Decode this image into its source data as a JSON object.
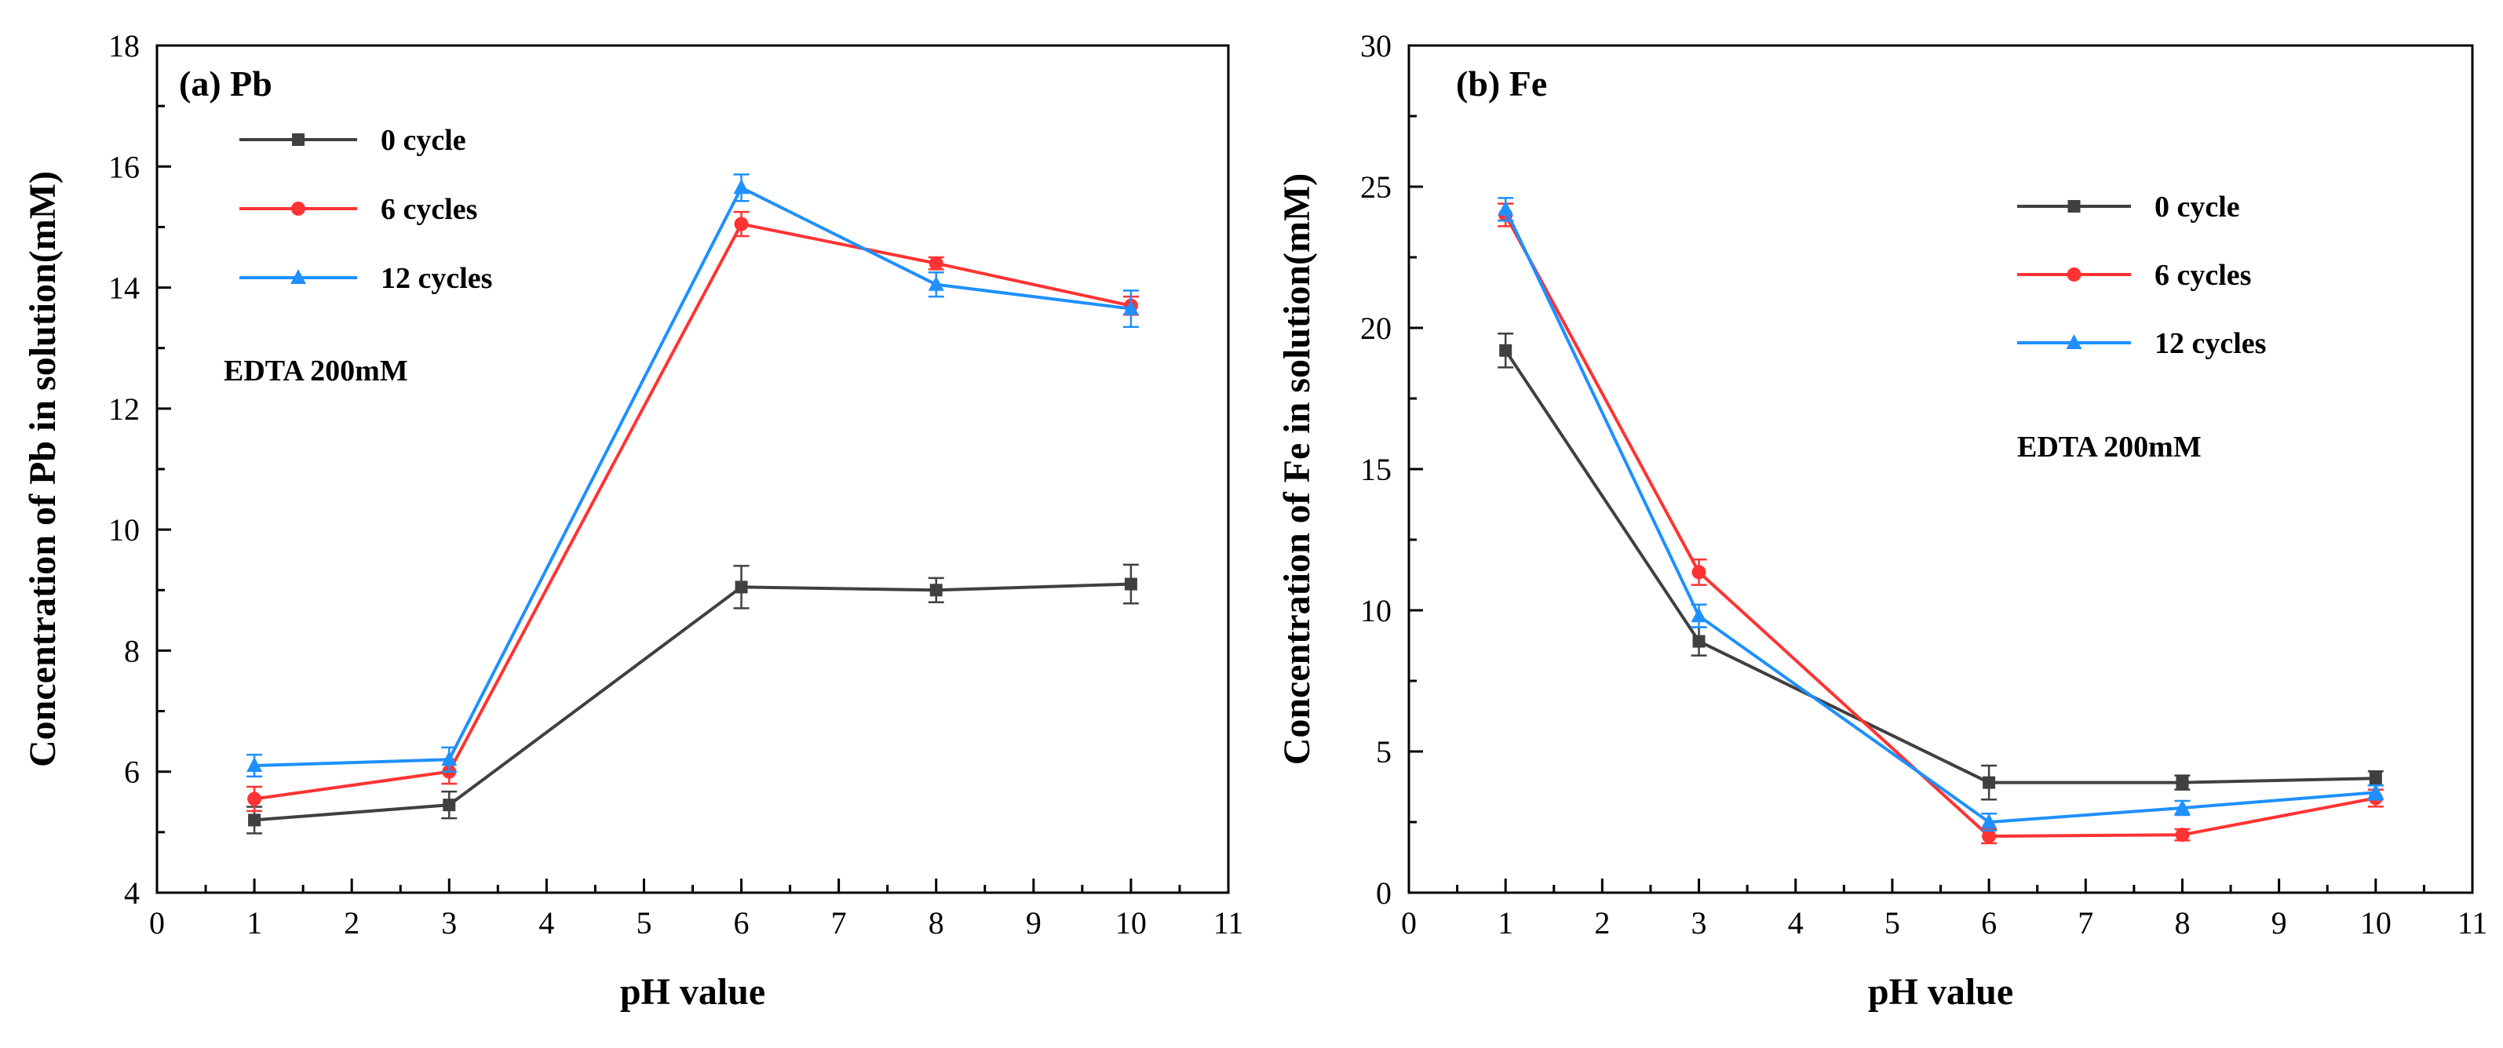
{
  "chart_data": [
    {
      "type": "line",
      "panel_title": "(a) Pb",
      "xlabel": "pH value",
      "ylabel": "Concentration of Pb in solution(mM)",
      "xlim": [
        0,
        11
      ],
      "ylim": [
        4,
        18
      ],
      "xticks": [
        0,
        1,
        2,
        3,
        4,
        5,
        6,
        7,
        8,
        9,
        10,
        11
      ],
      "yticks": [
        4,
        6,
        8,
        10,
        12,
        14,
        16,
        18
      ],
      "x": [
        1,
        3,
        6,
        8,
        10
      ],
      "annotation": "EDTA 200mM",
      "legend_position": "top-left",
      "series": [
        {
          "name": "0 cycle",
          "color": "#404040",
          "marker": "square",
          "values": [
            5.2,
            5.45,
            9.05,
            9.0,
            9.1
          ],
          "errors": [
            0.22,
            0.22,
            0.35,
            0.2,
            0.32
          ]
        },
        {
          "name": "6 cycles",
          "color": "#ff3333",
          "marker": "circle",
          "values": [
            5.55,
            6.0,
            15.05,
            14.4,
            13.7
          ],
          "errors": [
            0.2,
            0.2,
            0.2,
            0.1,
            0.15
          ]
        },
        {
          "name": "12 cycles",
          "color": "#1e90ff",
          "marker": "triangle",
          "values": [
            6.1,
            6.2,
            15.65,
            14.05,
            13.65
          ],
          "errors": [
            0.18,
            0.2,
            0.22,
            0.2,
            0.3
          ]
        }
      ]
    },
    {
      "type": "line",
      "panel_title": "(b) Fe",
      "xlabel": "pH value",
      "ylabel": "Concentration of Fe in solution(mM)",
      "xlim": [
        0,
        11
      ],
      "ylim": [
        0,
        30
      ],
      "xticks": [
        0,
        1,
        2,
        3,
        4,
        5,
        6,
        7,
        8,
        9,
        10,
        11
      ],
      "yticks": [
        0,
        5,
        10,
        15,
        20,
        25,
        30
      ],
      "x": [
        1,
        3,
        6,
        8,
        10
      ],
      "annotation": "EDTA 200mM",
      "legend_position": "top-right",
      "series": [
        {
          "name": "0 cycle",
          "color": "#404040",
          "marker": "square",
          "values": [
            19.2,
            8.9,
            3.9,
            3.9,
            4.05
          ],
          "errors": [
            0.6,
            0.5,
            0.6,
            0.25,
            0.25
          ]
        },
        {
          "name": "6 cycles",
          "color": "#ff3333",
          "marker": "circle",
          "values": [
            24.0,
            11.35,
            2.0,
            2.05,
            3.35
          ],
          "errors": [
            0.4,
            0.45,
            0.25,
            0.2,
            0.3
          ]
        },
        {
          "name": "12 cycles",
          "color": "#1e90ff",
          "marker": "triangle",
          "values": [
            24.2,
            9.8,
            2.5,
            3.0,
            3.55
          ],
          "errors": [
            0.4,
            0.4,
            0.3,
            0.25,
            0.25
          ]
        }
      ]
    }
  ]
}
